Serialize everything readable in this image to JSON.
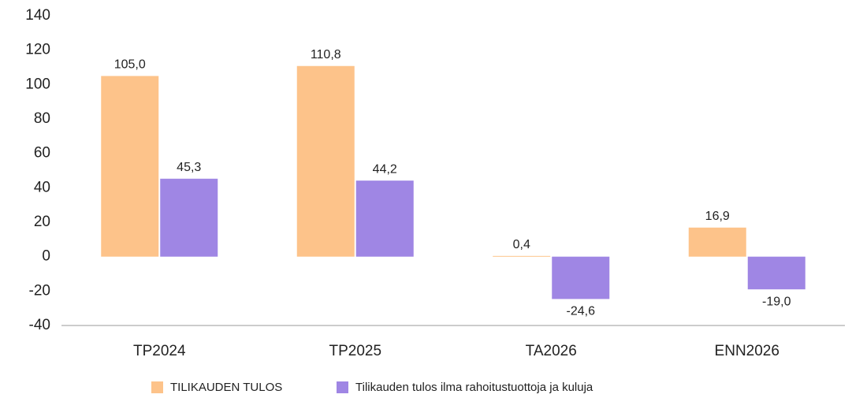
{
  "chart_data": {
    "type": "bar",
    "categories": [
      "TP2024",
      "TP2025",
      "TA2026",
      "ENN2026"
    ],
    "series": [
      {
        "name": "TILIKAUDEN TULOS",
        "color": "#fdc38a",
        "values": [
          105.0,
          110.8,
          0.4,
          16.9
        ],
        "value_labels": [
          "105,0",
          "110,8",
          "0,4",
          "16,9"
        ]
      },
      {
        "name": "Tilikauden tulos ilma rahoitustuottoja ja kuluja",
        "color": "#9f86e4",
        "values": [
          45.3,
          44.2,
          -24.6,
          -19.0
        ],
        "value_labels": [
          "45,3",
          "44,2",
          "-24,6",
          "-19,0"
        ]
      }
    ],
    "ylim": [
      -40,
      140
    ],
    "yticks": [
      -40,
      -20,
      0,
      20,
      40,
      60,
      80,
      100,
      120,
      140
    ],
    "grid": false,
    "legend": "bottom"
  }
}
